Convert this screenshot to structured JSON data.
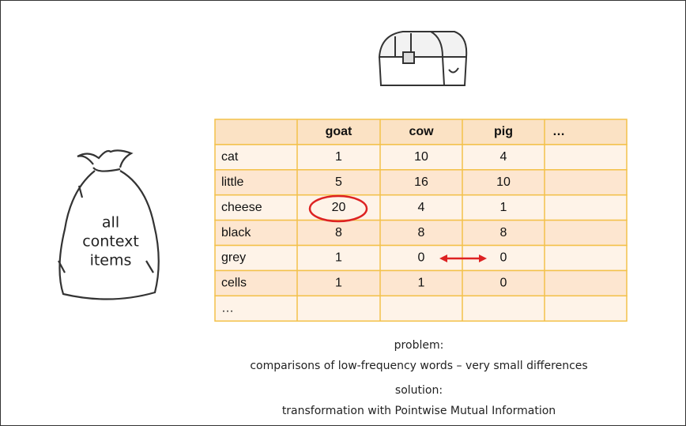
{
  "bag": {
    "lines": [
      "all",
      "context",
      "items"
    ]
  },
  "table": {
    "columns": [
      "goat",
      "cow",
      "pig",
      "…"
    ],
    "rows": [
      {
        "label": "cat",
        "cells": [
          1,
          10,
          4
        ]
      },
      {
        "label": "little",
        "cells": [
          5,
          16,
          10
        ]
      },
      {
        "label": "cheese",
        "cells": [
          20,
          4,
          1
        ]
      },
      {
        "label": "black",
        "cells": [
          8,
          8,
          8
        ]
      },
      {
        "label": "grey",
        "cells": [
          1,
          0,
          0
        ]
      },
      {
        "label": "cells",
        "cells": [
          1,
          1,
          0
        ]
      },
      {
        "label": "…",
        "cells": []
      }
    ]
  },
  "notes": {
    "problem_title": "problem:",
    "problem": "comparisons of low-frequency words – very small differences",
    "solution_title": "solution:",
    "solution": "transformation with Pointwise Mutual Information"
  }
}
